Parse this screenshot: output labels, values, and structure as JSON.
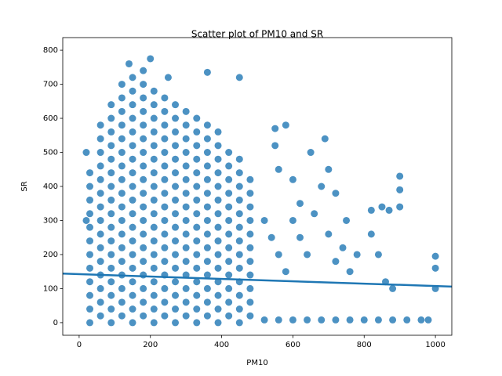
{
  "chart_data": {
    "type": "scatter",
    "title": "Scatter plot of PM10 and SR",
    "x_label": "PM10",
    "y_label": "SR",
    "color": "#1f77b4",
    "xlim": [
      -46,
      1046
    ],
    "ylim": [
      -37,
      837
    ],
    "xticks": [
      0,
      200,
      400,
      600,
      800,
      1000
    ],
    "yticks": [
      0,
      100,
      200,
      300,
      400,
      500,
      600,
      700,
      800
    ],
    "x": [
      30,
      30,
      30,
      30,
      30,
      30,
      30,
      30,
      30,
      30,
      30,
      30,
      60,
      60,
      60,
      60,
      60,
      60,
      60,
      60,
      60,
      60,
      60,
      60,
      60,
      60,
      60,
      90,
      90,
      90,
      90,
      90,
      90,
      90,
      90,
      90,
      90,
      90,
      90,
      90,
      90,
      90,
      90,
      90,
      120,
      120,
      120,
      120,
      120,
      120,
      120,
      120,
      120,
      120,
      120,
      120,
      120,
      120,
      120,
      120,
      120,
      120,
      150,
      150,
      150,
      150,
      150,
      150,
      150,
      150,
      150,
      150,
      150,
      150,
      150,
      150,
      150,
      150,
      150,
      150,
      150,
      180,
      180,
      180,
      180,
      180,
      180,
      180,
      180,
      180,
      180,
      180,
      180,
      180,
      180,
      180,
      180,
      180,
      180,
      180,
      210,
      210,
      210,
      210,
      210,
      210,
      210,
      210,
      210,
      210,
      210,
      210,
      210,
      210,
      210,
      210,
      210,
      210,
      240,
      240,
      240,
      240,
      240,
      240,
      240,
      240,
      240,
      240,
      240,
      240,
      240,
      240,
      240,
      240,
      240,
      270,
      270,
      270,
      270,
      270,
      270,
      270,
      270,
      270,
      270,
      270,
      270,
      270,
      270,
      270,
      270,
      270,
      300,
      300,
      300,
      300,
      300,
      300,
      300,
      300,
      300,
      300,
      300,
      300,
      300,
      300,
      300,
      300,
      330,
      330,
      330,
      330,
      330,
      330,
      330,
      330,
      330,
      330,
      330,
      330,
      330,
      330,
      330,
      330,
      360,
      360,
      360,
      360,
      360,
      360,
      360,
      360,
      360,
      360,
      360,
      360,
      360,
      360,
      360,
      390,
      390,
      390,
      390,
      390,
      390,
      390,
      390,
      390,
      390,
      390,
      390,
      390,
      390,
      390,
      420,
      420,
      420,
      420,
      420,
      420,
      420,
      420,
      420,
      420,
      420,
      420,
      420,
      450,
      450,
      450,
      450,
      450,
      450,
      450,
      450,
      450,
      450,
      450,
      450,
      450,
      480,
      480,
      480,
      480,
      480,
      480,
      480,
      480,
      480,
      480,
      480,
      520,
      560,
      600,
      640,
      680,
      720,
      760,
      800,
      840,
      880,
      920,
      960,
      980,
      550,
      550,
      560,
      580,
      600,
      620,
      650,
      680,
      690,
      700,
      720,
      750,
      780,
      820,
      850,
      870,
      900,
      900,
      900,
      520,
      540,
      560,
      580,
      600,
      620,
      640,
      660,
      700,
      720,
      740,
      760,
      820,
      840,
      860,
      880,
      1000,
      1000,
      1000,
      20,
      20,
      140,
      200,
      250,
      360,
      450
    ],
    "values": [
      0,
      40,
      80,
      120,
      160,
      200,
      240,
      280,
      320,
      360,
      400,
      440,
      20,
      60,
      100,
      140,
      180,
      220,
      260,
      300,
      340,
      380,
      420,
      460,
      500,
      540,
      580,
      0,
      40,
      80,
      120,
      160,
      200,
      240,
      280,
      320,
      360,
      400,
      440,
      480,
      520,
      560,
      600,
      640,
      20,
      60,
      100,
      140,
      180,
      220,
      260,
      300,
      340,
      380,
      420,
      460,
      500,
      540,
      580,
      620,
      660,
      700,
      0,
      40,
      80,
      120,
      160,
      200,
      240,
      280,
      320,
      360,
      400,
      440,
      480,
      520,
      560,
      600,
      640,
      680,
      720,
      20,
      60,
      100,
      140,
      180,
      220,
      260,
      300,
      340,
      380,
      420,
      460,
      500,
      540,
      580,
      620,
      660,
      700,
      740,
      0,
      40,
      80,
      120,
      160,
      200,
      240,
      280,
      320,
      360,
      400,
      440,
      480,
      520,
      560,
      600,
      640,
      680,
      20,
      60,
      100,
      140,
      180,
      220,
      260,
      300,
      340,
      380,
      420,
      460,
      500,
      540,
      580,
      620,
      660,
      0,
      40,
      80,
      120,
      160,
      200,
      240,
      280,
      320,
      360,
      400,
      440,
      480,
      520,
      560,
      600,
      640,
      20,
      60,
      100,
      140,
      180,
      220,
      260,
      300,
      340,
      380,
      420,
      460,
      500,
      540,
      580,
      620,
      0,
      40,
      80,
      120,
      160,
      200,
      240,
      280,
      320,
      360,
      400,
      440,
      480,
      520,
      560,
      600,
      20,
      60,
      100,
      140,
      180,
      220,
      260,
      300,
      340,
      380,
      420,
      460,
      500,
      540,
      580,
      0,
      40,
      80,
      120,
      160,
      200,
      240,
      280,
      320,
      360,
      400,
      440,
      480,
      520,
      560,
      20,
      60,
      100,
      140,
      180,
      220,
      260,
      300,
      340,
      380,
      420,
      460,
      500,
      0,
      40,
      80,
      120,
      160,
      200,
      240,
      280,
      320,
      360,
      400,
      440,
      480,
      20,
      60,
      100,
      140,
      180,
      220,
      260,
      300,
      340,
      380,
      420,
      8,
      8,
      8,
      8,
      8,
      8,
      8,
      8,
      8,
      8,
      8,
      8,
      8,
      570,
      520,
      450,
      580,
      420,
      350,
      500,
      400,
      540,
      450,
      380,
      300,
      200,
      330,
      340,
      330,
      430,
      390,
      340,
      300,
      250,
      200,
      150,
      300,
      250,
      200,
      320,
      260,
      180,
      220,
      150,
      260,
      200,
      120,
      100,
      195,
      160,
      100,
      300,
      500,
      760,
      775,
      720,
      735,
      720
    ],
    "trend_line": {
      "x": [
        -46,
        1046
      ],
      "values": [
        144,
        106
      ]
    }
  }
}
